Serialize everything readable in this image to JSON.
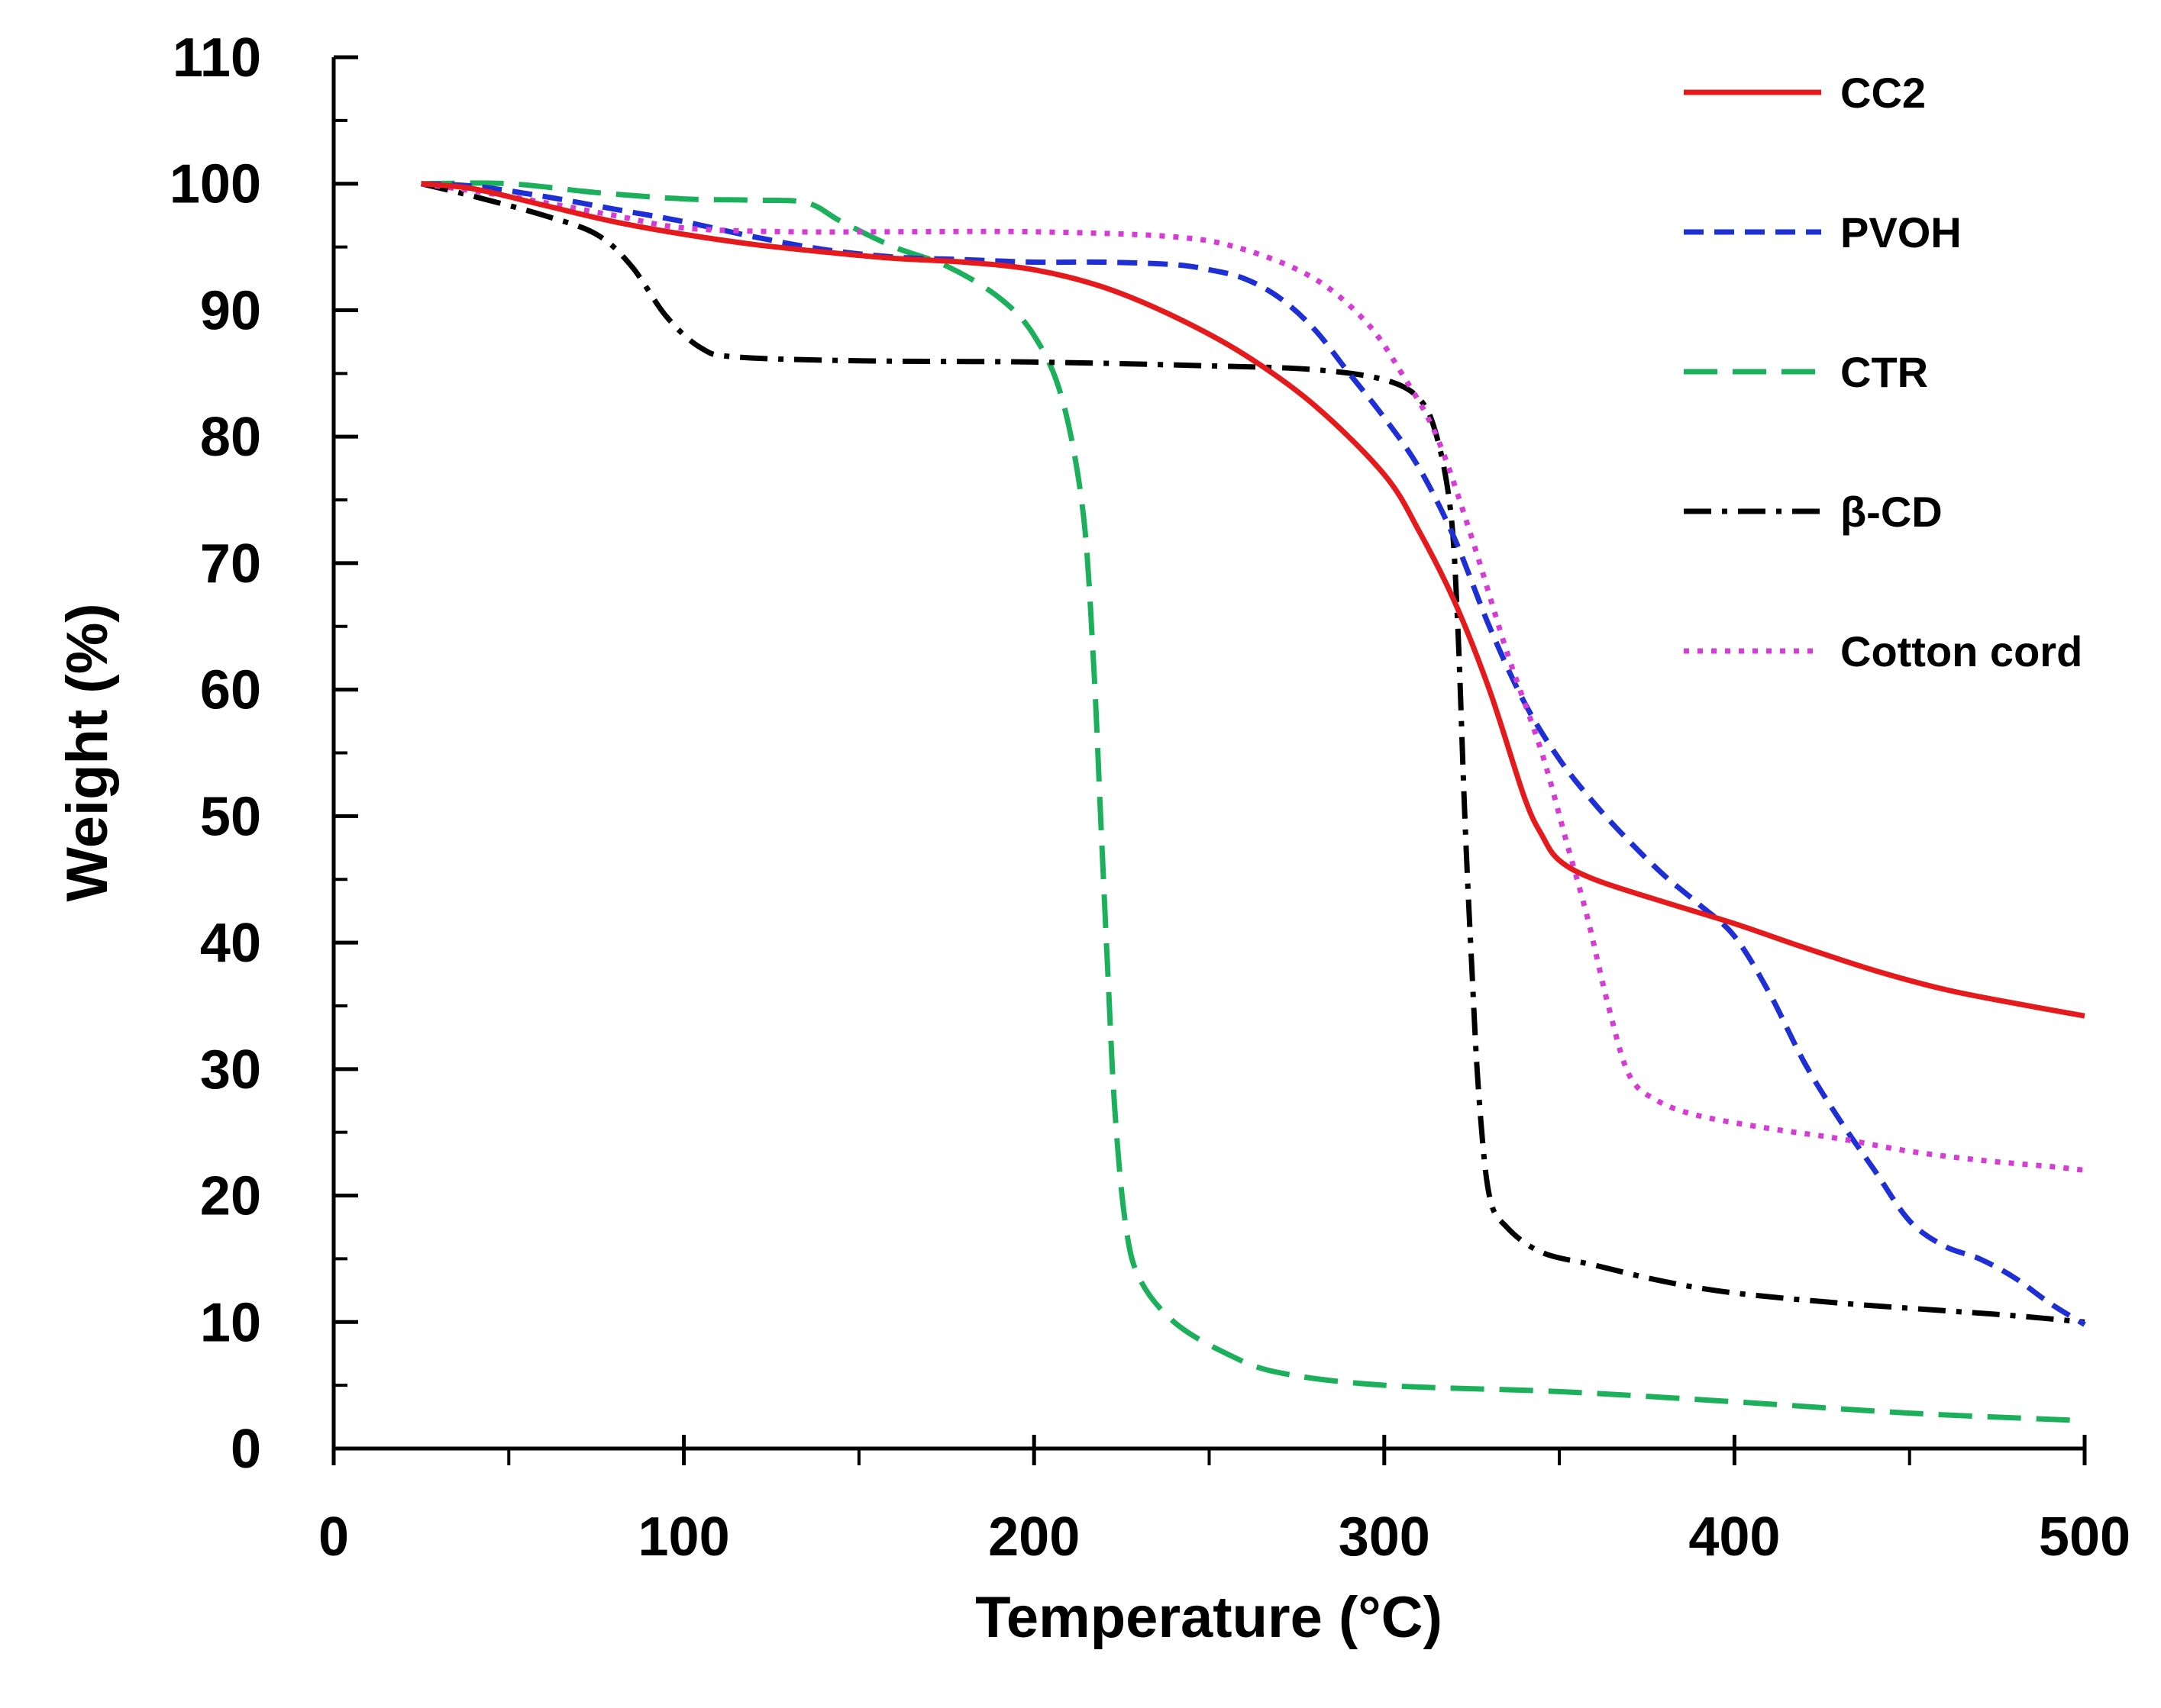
{
  "chart_data": {
    "type": "line",
    "title": "",
    "xlabel": "Temperature (°C)",
    "ylabel": "Weight (%)",
    "xlim": [
      0,
      500
    ],
    "ylim": [
      0,
      110
    ],
    "xticks": [
      0,
      100,
      200,
      300,
      400,
      500
    ],
    "yticks": [
      0,
      10,
      20,
      30,
      40,
      50,
      60,
      70,
      80,
      90,
      100,
      110
    ],
    "x_tick_labels": [
      "0",
      "100",
      "200",
      "300",
      "400",
      "500"
    ],
    "y_tick_labels": [
      "0",
      "10",
      "20",
      "30",
      "40",
      "50",
      "60",
      "70",
      "80",
      "90",
      "100",
      "110"
    ],
    "grid": false,
    "legend_position": "top-right",
    "series": [
      {
        "name": "CC2",
        "color": "#e41a1c",
        "dash": "solid",
        "points": [
          [
            25,
            100
          ],
          [
            40,
            99.6
          ],
          [
            60,
            98.3
          ],
          [
            80,
            97
          ],
          [
            100,
            96
          ],
          [
            120,
            95.2
          ],
          [
            140,
            94.6
          ],
          [
            160,
            94.1
          ],
          [
            180,
            93.8
          ],
          [
            200,
            93.2
          ],
          [
            220,
            91.8
          ],
          [
            240,
            89.5
          ],
          [
            260,
            86.5
          ],
          [
            280,
            82.5
          ],
          [
            300,
            77
          ],
          [
            310,
            72.5
          ],
          [
            320,
            67
          ],
          [
            330,
            60
          ],
          [
            340,
            51.5
          ],
          [
            345,
            48.5
          ],
          [
            350,
            46.5
          ],
          [
            360,
            45
          ],
          [
            380,
            43.2
          ],
          [
            400,
            41.5
          ],
          [
            420,
            39.6
          ],
          [
            440,
            37.8
          ],
          [
            460,
            36.3
          ],
          [
            480,
            35.2
          ],
          [
            500,
            34.2
          ]
        ]
      },
      {
        "name": "PVOH",
        "color": "#1f2fd6",
        "dash": "dashed",
        "points": [
          [
            25,
            100
          ],
          [
            40,
            99.8
          ],
          [
            60,
            99
          ],
          [
            80,
            98
          ],
          [
            100,
            97
          ],
          [
            120,
            95.8
          ],
          [
            140,
            94.8
          ],
          [
            160,
            94.2
          ],
          [
            180,
            94
          ],
          [
            200,
            93.8
          ],
          [
            220,
            93.8
          ],
          [
            240,
            93.6
          ],
          [
            250,
            93.2
          ],
          [
            260,
            92.5
          ],
          [
            270,
            91
          ],
          [
            280,
            88.5
          ],
          [
            290,
            85
          ],
          [
            300,
            81.5
          ],
          [
            310,
            77.5
          ],
          [
            320,
            72
          ],
          [
            330,
            65
          ],
          [
            340,
            59
          ],
          [
            350,
            54.5
          ],
          [
            360,
            51
          ],
          [
            370,
            48
          ],
          [
            380,
            45.3
          ],
          [
            390,
            43
          ],
          [
            400,
            40.5
          ],
          [
            410,
            36
          ],
          [
            420,
            30.5
          ],
          [
            430,
            26
          ],
          [
            440,
            22
          ],
          [
            450,
            18
          ],
          [
            460,
            16
          ],
          [
            470,
            15
          ],
          [
            480,
            13.5
          ],
          [
            490,
            11.5
          ],
          [
            500,
            9.8
          ]
        ]
      },
      {
        "name": "CTR",
        "color": "#1db05c",
        "dash": "longdash",
        "points": [
          [
            25,
            100
          ],
          [
            50,
            100
          ],
          [
            75,
            99.3
          ],
          [
            100,
            98.8
          ],
          [
            120,
            98.7
          ],
          [
            135,
            98.5
          ],
          [
            145,
            97
          ],
          [
            160,
            95
          ],
          [
            175,
            93.5
          ],
          [
            190,
            91
          ],
          [
            200,
            88
          ],
          [
            208,
            83
          ],
          [
            214,
            74
          ],
          [
            217,
            62
          ],
          [
            219,
            50
          ],
          [
            221,
            38
          ],
          [
            223,
            27
          ],
          [
            226,
            18
          ],
          [
            230,
            13.5
          ],
          [
            240,
            10
          ],
          [
            255,
            7.5
          ],
          [
            270,
            6
          ],
          [
            300,
            5
          ],
          [
            350,
            4.5
          ],
          [
            400,
            3.7
          ],
          [
            450,
            2.8
          ],
          [
            500,
            2.2
          ]
        ]
      },
      {
        "name": "β-CD",
        "color": "#000000",
        "dash": "dashdot",
        "points": [
          [
            25,
            100
          ],
          [
            40,
            99
          ],
          [
            60,
            97.5
          ],
          [
            75,
            96
          ],
          [
            85,
            93.5
          ],
          [
            95,
            89.5
          ],
          [
            105,
            87
          ],
          [
            115,
            86.3
          ],
          [
            150,
            86
          ],
          [
            200,
            85.9
          ],
          [
            250,
            85.6
          ],
          [
            280,
            85.3
          ],
          [
            300,
            84.5
          ],
          [
            310,
            83
          ],
          [
            315,
            80
          ],
          [
            319,
            74
          ],
          [
            321,
            65
          ],
          [
            323,
            50
          ],
          [
            325,
            38
          ],
          [
            327,
            28
          ],
          [
            330,
            20
          ],
          [
            335,
            17.5
          ],
          [
            345,
            15.5
          ],
          [
            360,
            14.5
          ],
          [
            380,
            13.2
          ],
          [
            400,
            12.3
          ],
          [
            430,
            11.5
          ],
          [
            460,
            10.9
          ],
          [
            480,
            10.5
          ],
          [
            500,
            10
          ]
        ]
      },
      {
        "name": "Cotton cord",
        "color": "#d63bd6",
        "dash": "dotted",
        "points": [
          [
            25,
            100
          ],
          [
            50,
            99
          ],
          [
            80,
            97.5
          ],
          [
            100,
            96.5
          ],
          [
            130,
            96.2
          ],
          [
            160,
            96.2
          ],
          [
            200,
            96.2
          ],
          [
            240,
            95.8
          ],
          [
            260,
            94.8
          ],
          [
            280,
            92.5
          ],
          [
            295,
            89
          ],
          [
            305,
            85
          ],
          [
            315,
            80
          ],
          [
            325,
            72
          ],
          [
            335,
            63
          ],
          [
            345,
            55
          ],
          [
            352,
            48
          ],
          [
            358,
            42
          ],
          [
            364,
            35
          ],
          [
            370,
            29.5
          ],
          [
            378,
            27.5
          ],
          [
            390,
            26.3
          ],
          [
            410,
            25.3
          ],
          [
            430,
            24.5
          ],
          [
            450,
            23.5
          ],
          [
            470,
            22.8
          ],
          [
            490,
            22.3
          ],
          [
            500,
            22
          ]
        ]
      }
    ]
  }
}
